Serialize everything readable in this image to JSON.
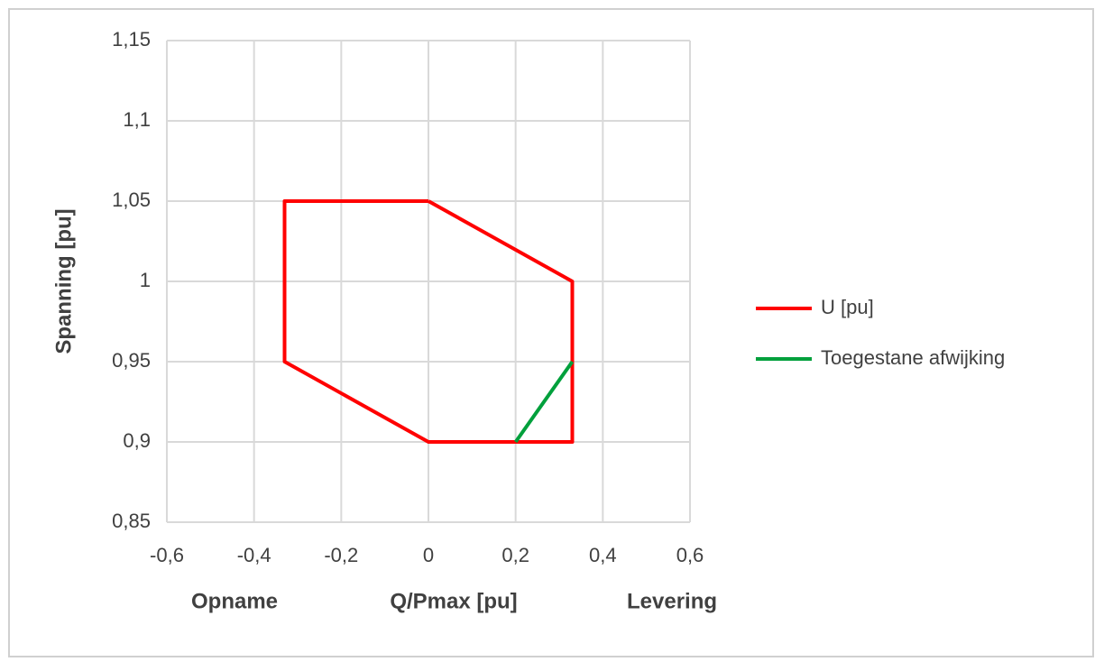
{
  "chart_data": {
    "type": "line",
    "y_label": "Spanning [pu]",
    "x_label": "Q/Pmax [pu]",
    "x_label_left": "Opname",
    "x_label_right": "Levering",
    "series": [
      {
        "name": "U [pu]",
        "color": "#ff0000",
        "x": [
          0,
          0.33,
          0.33,
          0,
          -0.33,
          -0.33,
          0
        ],
        "values": [
          1.05,
          1.0,
          0.9,
          0.9,
          0.95,
          1.05,
          1.05
        ]
      },
      {
        "name": "Toegestane afwijking",
        "color": "#00a03c",
        "x": [
          0.2,
          0.33
        ],
        "values": [
          0.9,
          0.95
        ]
      }
    ],
    "xlim": [
      -0.6,
      0.6
    ],
    "xticks": [
      {
        "value": -0.6,
        "label": "-0,6"
      },
      {
        "value": -0.4,
        "label": "-0,4"
      },
      {
        "value": -0.2,
        "label": "-0,2"
      },
      0,
      {
        "value": 0.2,
        "label": "0,2"
      },
      {
        "value": 0.4,
        "label": "0,4"
      },
      {
        "value": 0.6,
        "label": "0,6"
      }
    ],
    "ylim": [
      0.85,
      1.15
    ],
    "yticks": [
      {
        "value": 0.85,
        "label": "0,85"
      },
      {
        "value": 0.9,
        "label": "0,9"
      },
      {
        "value": 0.95,
        "label": "0,95"
      },
      1,
      {
        "value": 1.05,
        "label": "1,05"
      },
      {
        "value": 1.1,
        "label": "1,1"
      },
      {
        "value": 1.15,
        "label": "1,15"
      }
    ],
    "grid": true,
    "legend": "right"
  }
}
